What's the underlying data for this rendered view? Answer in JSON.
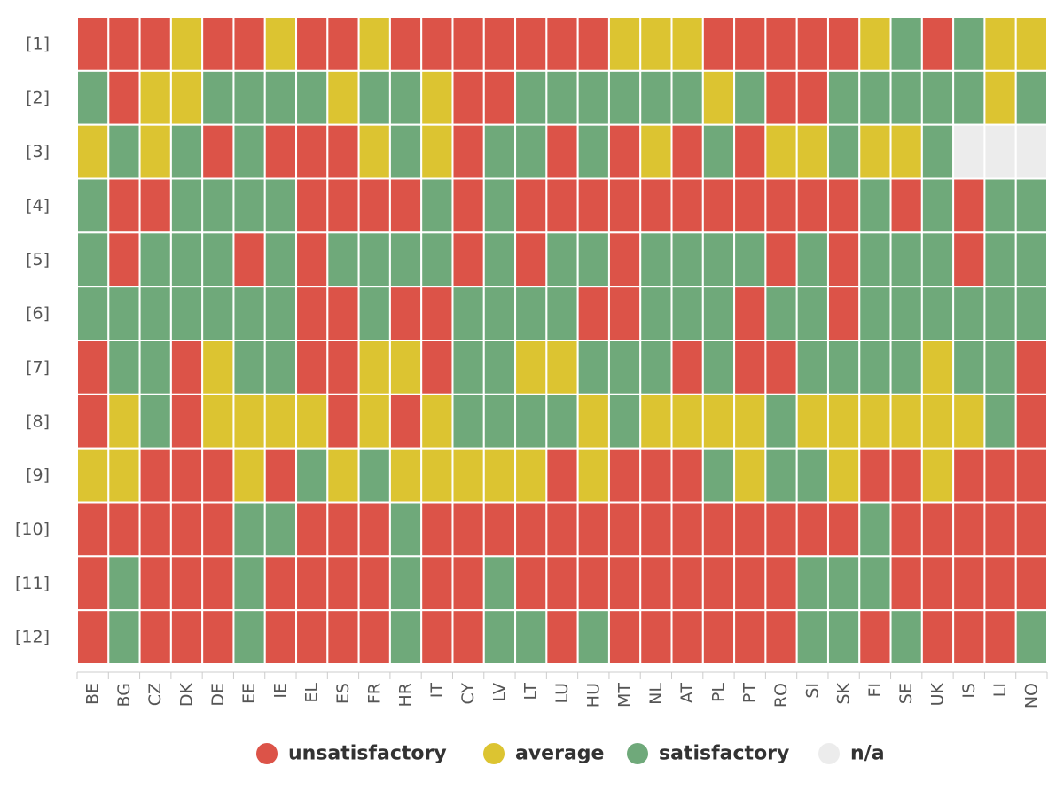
{
  "chart_data": {
    "type": "heatmap",
    "rows": [
      "[1]",
      "[2]",
      "[3]",
      "[4]",
      "[5]",
      "[6]",
      "[7]",
      "[8]",
      "[9]",
      "[10]",
      "[11]",
      "[12]"
    ],
    "columns": [
      "BE",
      "BG",
      "CZ",
      "DK",
      "DE",
      "EE",
      "IE",
      "EL",
      "ES",
      "FR",
      "HR",
      "IT",
      "CY",
      "LV",
      "LT",
      "LU",
      "HU",
      "MT",
      "NL",
      "AT",
      "PL",
      "PT",
      "RO",
      "SI",
      "SK",
      "FI",
      "SE",
      "UK",
      "IS",
      "LI",
      "NO"
    ],
    "categories": [
      {
        "key": "u",
        "label": "unsatisfactory",
        "color": "#dc5348"
      },
      {
        "key": "a",
        "label": "average",
        "color": "#dcc431"
      },
      {
        "key": "s",
        "label": "satisfactory",
        "color": "#6fa97a"
      },
      {
        "key": "n",
        "label": "n/a",
        "color": "#ececec"
      }
    ],
    "values": [
      [
        "u",
        "u",
        "u",
        "a",
        "u",
        "u",
        "a",
        "u",
        "u",
        "a",
        "u",
        "u",
        "u",
        "u",
        "u",
        "u",
        "u",
        "a",
        "a",
        "a",
        "u",
        "u",
        "u",
        "u",
        "u",
        "a",
        "s",
        "u",
        "s",
        "a",
        "a"
      ],
      [
        "s",
        "u",
        "a",
        "a",
        "s",
        "s",
        "s",
        "s",
        "a",
        "s",
        "s",
        "a",
        "u",
        "u",
        "s",
        "s",
        "s",
        "s",
        "s",
        "s",
        "a",
        "s",
        "u",
        "u",
        "s",
        "s",
        "s",
        "s",
        "s",
        "a",
        "s"
      ],
      [
        "a",
        "s",
        "a",
        "s",
        "u",
        "s",
        "u",
        "u",
        "u",
        "a",
        "s",
        "a",
        "u",
        "s",
        "s",
        "u",
        "s",
        "u",
        "a",
        "u",
        "s",
        "u",
        "a",
        "a",
        "s",
        "a",
        "a",
        "s",
        "n",
        "n",
        "n"
      ],
      [
        "s",
        "u",
        "u",
        "s",
        "s",
        "s",
        "s",
        "u",
        "u",
        "u",
        "u",
        "s",
        "u",
        "s",
        "u",
        "u",
        "u",
        "u",
        "u",
        "u",
        "u",
        "u",
        "u",
        "u",
        "u",
        "s",
        "u",
        "s",
        "u",
        "s",
        "s"
      ],
      [
        "s",
        "u",
        "s",
        "s",
        "s",
        "u",
        "s",
        "u",
        "s",
        "s",
        "s",
        "s",
        "u",
        "s",
        "u",
        "s",
        "s",
        "u",
        "s",
        "s",
        "s",
        "s",
        "u",
        "s",
        "u",
        "s",
        "s",
        "s",
        "u",
        "s",
        "s"
      ],
      [
        "s",
        "s",
        "s",
        "s",
        "s",
        "s",
        "s",
        "u",
        "u",
        "s",
        "u",
        "u",
        "s",
        "s",
        "s",
        "s",
        "u",
        "u",
        "s",
        "s",
        "s",
        "u",
        "s",
        "s",
        "u",
        "s",
        "s",
        "s",
        "s",
        "s",
        "s"
      ],
      [
        "u",
        "s",
        "s",
        "u",
        "a",
        "s",
        "s",
        "u",
        "u",
        "a",
        "a",
        "u",
        "s",
        "s",
        "a",
        "a",
        "s",
        "s",
        "s",
        "u",
        "s",
        "u",
        "u",
        "s",
        "s",
        "s",
        "s",
        "a",
        "s",
        "s",
        "u"
      ],
      [
        "u",
        "a",
        "s",
        "u",
        "a",
        "a",
        "a",
        "a",
        "u",
        "a",
        "u",
        "a",
        "s",
        "s",
        "s",
        "s",
        "a",
        "s",
        "a",
        "a",
        "a",
        "a",
        "s",
        "a",
        "a",
        "a",
        "a",
        "a",
        "a",
        "s",
        "u"
      ],
      [
        "a",
        "a",
        "u",
        "u",
        "u",
        "a",
        "u",
        "s",
        "a",
        "s",
        "a",
        "a",
        "a",
        "a",
        "a",
        "u",
        "a",
        "u",
        "u",
        "u",
        "s",
        "a",
        "s",
        "s",
        "a",
        "u",
        "u",
        "a",
        "u",
        "u",
        "u"
      ],
      [
        "u",
        "u",
        "u",
        "u",
        "u",
        "s",
        "s",
        "u",
        "u",
        "u",
        "s",
        "u",
        "u",
        "u",
        "u",
        "u",
        "u",
        "u",
        "u",
        "u",
        "u",
        "u",
        "u",
        "u",
        "u",
        "s",
        "u",
        "u",
        "u",
        "u",
        "u"
      ],
      [
        "u",
        "s",
        "u",
        "u",
        "u",
        "s",
        "u",
        "u",
        "u",
        "u",
        "s",
        "u",
        "u",
        "s",
        "u",
        "u",
        "u",
        "u",
        "u",
        "u",
        "u",
        "u",
        "u",
        "s",
        "s",
        "s",
        "u",
        "u",
        "u",
        "u",
        "u"
      ],
      [
        "u",
        "s",
        "u",
        "u",
        "u",
        "s",
        "u",
        "u",
        "u",
        "u",
        "s",
        "u",
        "u",
        "s",
        "s",
        "u",
        "s",
        "u",
        "u",
        "u",
        "u",
        "u",
        "u",
        "s",
        "s",
        "u",
        "s",
        "u",
        "u",
        "u",
        "s"
      ]
    ],
    "legend_position": "bottom-center",
    "grid": true,
    "title": "",
    "xlabel": "",
    "ylabel": ""
  }
}
